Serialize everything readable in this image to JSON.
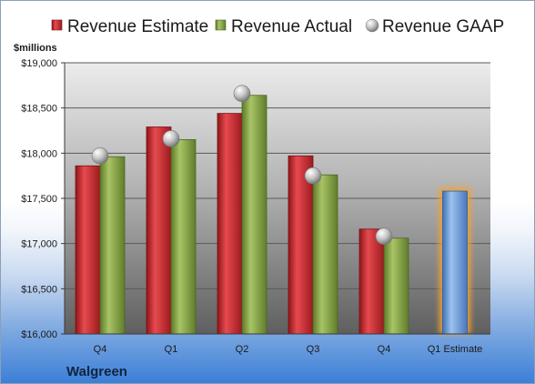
{
  "chart_data": {
    "type": "bar",
    "categories": [
      "Q4",
      "Q1",
      "Q2",
      "Q3",
      "Q4",
      "Q1 Estimate"
    ],
    "series": [
      {
        "name": "Revenue Estimate",
        "values": [
          17860,
          18290,
          18440,
          17970,
          17160,
          null
        ]
      },
      {
        "name": "Revenue Actual",
        "values": [
          17960,
          18150,
          18640,
          17760,
          17060,
          17580
        ]
      },
      {
        "name": "Revenue GAAP",
        "values": [
          17970,
          18160,
          18660,
          17750,
          17080,
          null
        ]
      }
    ],
    "highlight": {
      "category_index": 5,
      "series": "Revenue Actual",
      "note_color": "#7aa7d9"
    },
    "ylabel": "$millions",
    "ylim": [
      16000,
      19000
    ],
    "yticks": [
      16000,
      16500,
      17000,
      17500,
      18000,
      18500,
      19000
    ],
    "ytick_labels": [
      "$16,000",
      "$16,500",
      "$17,000",
      "$17,500",
      "$18,000",
      "$18,500",
      "$19,000"
    ],
    "grid": true,
    "legend_position": "top",
    "company": "Walgreen"
  },
  "colors": {
    "estimate": "#c0262b",
    "actual": "#86a544",
    "gaap": "#b8b8b8",
    "projected": "#6f9fd6",
    "glow": "#f5a235"
  }
}
